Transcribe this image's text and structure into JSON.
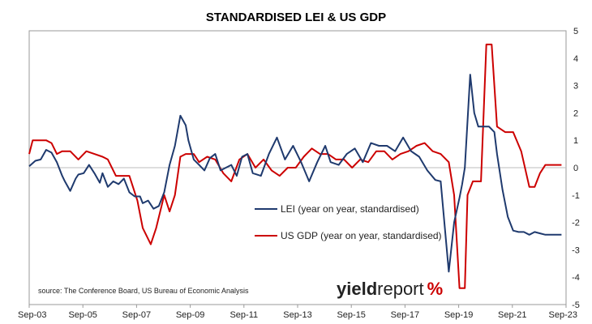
{
  "chart_data": {
    "type": "line",
    "title": "STANDARDISED LEI & US GDP",
    "xlabel": "",
    "ylabel": "",
    "x_ticks": [
      "Sep-03",
      "Sep-05",
      "Sep-07",
      "Sep-09",
      "Sep-11",
      "Sep-13",
      "Sep-15",
      "Sep-17",
      "Sep-19",
      "Sep-21",
      "Sep-23"
    ],
    "x_range": [
      2003.67,
      2023.67
    ],
    "ylim": [
      -5,
      5
    ],
    "y_ticks": [
      5,
      4,
      3,
      2,
      1,
      0,
      -1,
      -2,
      -3,
      -4,
      -5
    ],
    "y_axis_side": "right",
    "grid": false,
    "legend_position": "center-right",
    "series": [
      {
        "name": "LEI (year on year, standardised)",
        "color": "#1f3a6e",
        "x": [
          2003.67,
          2003.9,
          2004.1,
          2004.3,
          2004.5,
          2004.7,
          2004.9,
          2005.0,
          2005.2,
          2005.4,
          2005.5,
          2005.7,
          2005.9,
          2006.1,
          2006.3,
          2006.4,
          2006.6,
          2006.8,
          2007.0,
          2007.2,
          2007.4,
          2007.6,
          2007.8,
          2007.9,
          2008.1,
          2008.3,
          2008.5,
          2008.7,
          2008.9,
          2009.1,
          2009.3,
          2009.5,
          2009.6,
          2009.8,
          2010.0,
          2010.2,
          2010.4,
          2010.6,
          2010.8,
          2011.0,
          2011.2,
          2011.4,
          2011.6,
          2011.8,
          2012.0,
          2012.3,
          2012.6,
          2012.9,
          2013.2,
          2013.5,
          2013.8,
          2014.1,
          2014.4,
          2014.7,
          2014.9,
          2015.2,
          2015.5,
          2015.8,
          2016.1,
          2016.4,
          2016.7,
          2017.0,
          2017.3,
          2017.6,
          2017.9,
          2018.2,
          2018.5,
          2018.8,
          2019.0,
          2019.3,
          2019.5,
          2019.7,
          2019.8,
          2019.9,
          2020.1,
          2020.25,
          2020.4,
          2020.6,
          2020.8,
          2021.0,
          2021.1,
          2021.3,
          2021.5,
          2021.7,
          2021.9,
          2022.1,
          2022.3,
          2022.5,
          2022.7,
          2022.9,
          2023.1,
          2023.3,
          2023.5
        ],
        "values": [
          0.05,
          0.25,
          0.3,
          0.65,
          0.55,
          0.2,
          -0.3,
          -0.5,
          -0.85,
          -0.4,
          -0.25,
          -0.2,
          0.1,
          -0.2,
          -0.55,
          -0.2,
          -0.7,
          -0.5,
          -0.6,
          -0.4,
          -0.9,
          -1.05,
          -1.05,
          -1.3,
          -1.2,
          -1.5,
          -1.4,
          -0.9,
          0.1,
          0.8,
          1.9,
          1.55,
          1.0,
          0.3,
          0.1,
          -0.1,
          0.35,
          0.5,
          -0.1,
          0.0,
          0.1,
          -0.3,
          0.4,
          0.5,
          -0.2,
          -0.3,
          0.5,
          1.1,
          0.3,
          0.8,
          0.2,
          -0.5,
          0.2,
          0.8,
          0.2,
          0.1,
          0.5,
          0.7,
          0.2,
          0.9,
          0.8,
          0.8,
          0.6,
          1.1,
          0.6,
          0.4,
          -0.1,
          -0.45,
          -0.5,
          -3.8,
          -2.0,
          -1.1,
          -0.6,
          0.0,
          3.4,
          2.0,
          1.5,
          1.5,
          1.5,
          1.3,
          0.5,
          -0.8,
          -1.8,
          -2.3,
          -2.35,
          -2.35,
          -2.45,
          -2.35,
          -2.4,
          -2.45,
          -2.45,
          -2.45,
          -2.45
        ],
        "__comment_unused": ""
      },
      {
        "name": "US GDP (year on year, standardised)",
        "color": "#cc0000",
        "x": [
          2003.67,
          2003.8,
          2004.0,
          2004.3,
          2004.5,
          2004.7,
          2004.9,
          2005.2,
          2005.5,
          2005.8,
          2006.1,
          2006.4,
          2006.6,
          2006.9,
          2007.1,
          2007.4,
          2007.7,
          2007.9,
          2008.2,
          2008.4,
          2008.7,
          2008.9,
          2009.1,
          2009.3,
          2009.5,
          2009.8,
          2010.0,
          2010.3,
          2010.6,
          2010.9,
          2011.2,
          2011.5,
          2011.8,
          2012.1,
          2012.4,
          2012.7,
          2013.0,
          2013.3,
          2013.6,
          2013.9,
          2014.2,
          2014.5,
          2014.8,
          2015.1,
          2015.4,
          2015.7,
          2016.0,
          2016.3,
          2016.6,
          2016.9,
          2017.2,
          2017.5,
          2017.8,
          2018.1,
          2018.4,
          2018.7,
          2019.0,
          2019.3,
          2019.5,
          2019.7,
          2019.9,
          2020.0,
          2020.2,
          2020.5,
          2020.7,
          2020.9,
          2021.1,
          2021.4,
          2021.7,
          2022.0,
          2022.3,
          2022.5,
          2022.7,
          2022.9,
          2023.1,
          2023.3,
          2023.5
        ],
        "values": [
          0.5,
          1.0,
          1.0,
          1.0,
          0.9,
          0.5,
          0.6,
          0.6,
          0.3,
          0.6,
          0.5,
          0.4,
          0.3,
          -0.3,
          -0.3,
          -0.3,
          -1.2,
          -2.2,
          -2.8,
          -2.2,
          -1.0,
          -1.6,
          -1.0,
          0.4,
          0.5,
          0.5,
          0.2,
          0.4,
          0.3,
          -0.2,
          -0.5,
          0.3,
          0.5,
          0.0,
          0.3,
          -0.1,
          -0.3,
          0.0,
          0.0,
          0.4,
          0.7,
          0.5,
          0.5,
          0.3,
          0.3,
          0.0,
          0.3,
          0.2,
          0.6,
          0.6,
          0.3,
          0.5,
          0.6,
          0.8,
          0.9,
          0.6,
          0.5,
          0.2,
          -1.0,
          -4.4,
          -4.4,
          -1.0,
          -0.5,
          -0.5,
          4.5,
          4.5,
          1.5,
          1.3,
          1.3,
          0.6,
          -0.7,
          -0.7,
          -0.2,
          0.1,
          0.1,
          0.1,
          0.1
        ]
      }
    ]
  },
  "annotations": {
    "source": "source: The Conference Board, US Bureau of Economic Analysis"
  },
  "logo": {
    "part1": "yield",
    "part2": "report",
    "part3": "%",
    "color_dark": "#222222",
    "color_accent": "#cc0000",
    "color_green": "#2e8b3c"
  }
}
